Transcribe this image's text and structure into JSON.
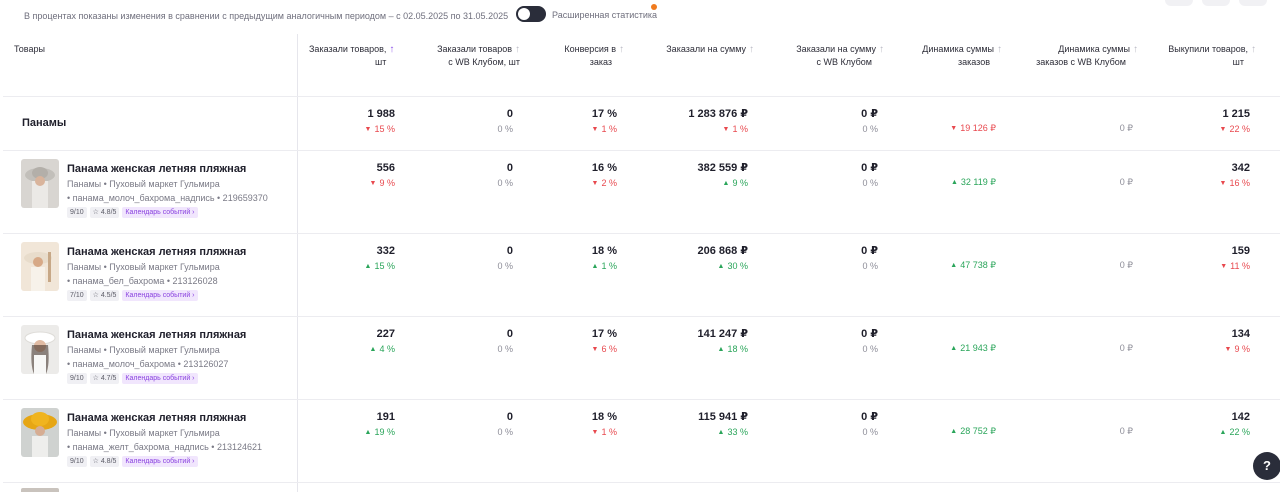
{
  "top": {
    "period_note": "В процентах показаны изменения в сравнении с предыдущим аналогичным периодом – с 02.05.2025 по 31.05.2025",
    "toggle_label": "Расширенная статистика"
  },
  "columns": [
    {
      "line1": "Товары",
      "line2": ""
    },
    {
      "line1": "Заказали товаров,",
      "line2": "шт",
      "arrow": "↑"
    },
    {
      "line1": "Заказали товаров",
      "line2": "с WB Клубом, шт",
      "arrow": "↑"
    },
    {
      "line1": "Конверсия в",
      "line2": "заказ",
      "arrow": "↑"
    },
    {
      "line1": "Заказали на сумму",
      "line2": "",
      "arrow": "↑"
    },
    {
      "line1": "Заказали на сумму",
      "line2": "с WB Клубом",
      "arrow": "↑"
    },
    {
      "line1": "Динамика суммы",
      "line2": "заказов",
      "arrow": "↑"
    },
    {
      "line1": "Динамика суммы",
      "line2": "заказов с WB Клубом",
      "arrow": "↑"
    },
    {
      "line1": "Выкупили товаров,",
      "line2": "шт",
      "arrow": "↑"
    }
  ],
  "group": {
    "name": "Панамы",
    "cells": [
      {
        "value": "1 988",
        "delta": "15 %",
        "dir": "down"
      },
      {
        "value": "0",
        "delta": "0 %",
        "dir": "neutral"
      },
      {
        "value": "17 %",
        "delta": "1 %",
        "dir": "down"
      },
      {
        "value": "1 283 876 ₽",
        "delta": "1 %",
        "dir": "down"
      },
      {
        "value": "0 ₽",
        "delta": "0 %",
        "dir": "neutral"
      },
      {
        "value": "",
        "delta": "19 126 ₽",
        "dir": "down"
      },
      {
        "value": "",
        "delta": "0 ₽",
        "dir": "neutral"
      },
      {
        "value": "1 215",
        "delta": "22 %",
        "dir": "down"
      }
    ]
  },
  "products": [
    {
      "name": "Панама женская летняя пляжная",
      "meta": "Панамы • Пуховый маркет Гульмира",
      "sku": "• панама_молоч_бахрома_надпись • 219659370",
      "score": "9/10",
      "rating": "☆ 4.8/5",
      "calendar": "Календарь событий ›",
      "photo": "photo-grey",
      "cells": [
        {
          "value": "556",
          "delta": "9 %",
          "dir": "down"
        },
        {
          "value": "0",
          "delta": "0 %",
          "dir": "neutral"
        },
        {
          "value": "16 %",
          "delta": "2 %",
          "dir": "down"
        },
        {
          "value": "382 559 ₽",
          "delta": "9 %",
          "dir": "up"
        },
        {
          "value": "0 ₽",
          "delta": "0 %",
          "dir": "neutral"
        },
        {
          "value": "",
          "delta": "32 119 ₽",
          "dir": "up"
        },
        {
          "value": "",
          "delta": "0 ₽",
          "dir": "neutral"
        },
        {
          "value": "342",
          "delta": "16 %",
          "dir": "down"
        }
      ]
    },
    {
      "name": "Панама женская летняя пляжная",
      "meta": "Панамы • Пуховый маркет Гульмира",
      "sku": "• панама_бел_бахрома • 213126028",
      "score": "7/10",
      "rating": "☆ 4.5/5",
      "calendar": "Календарь событий ›",
      "photo": "photo-beige",
      "cells": [
        {
          "value": "332",
          "delta": "15 %",
          "dir": "up"
        },
        {
          "value": "0",
          "delta": "0 %",
          "dir": "neutral"
        },
        {
          "value": "18 %",
          "delta": "1 %",
          "dir": "up"
        },
        {
          "value": "206 868 ₽",
          "delta": "30 %",
          "dir": "up"
        },
        {
          "value": "0 ₽",
          "delta": "0 %",
          "dir": "neutral"
        },
        {
          "value": "",
          "delta": "47 738 ₽",
          "dir": "up"
        },
        {
          "value": "",
          "delta": "0 ₽",
          "dir": "neutral"
        },
        {
          "value": "159",
          "delta": "11 %",
          "dir": "down"
        }
      ]
    },
    {
      "name": "Панама женская летняя пляжная",
      "meta": "Панамы • Пуховый маркет Гульмира",
      "sku": "• панама_молоч_бахрома • 213126027",
      "score": "9/10",
      "rating": "☆ 4.7/5",
      "calendar": "Календарь событий ›",
      "photo": "photo-white",
      "cells": [
        {
          "value": "227",
          "delta": "4 %",
          "dir": "up"
        },
        {
          "value": "0",
          "delta": "0 %",
          "dir": "neutral"
        },
        {
          "value": "17 %",
          "delta": "6 %",
          "dir": "down"
        },
        {
          "value": "141 247 ₽",
          "delta": "18 %",
          "dir": "up"
        },
        {
          "value": "0 ₽",
          "delta": "0 %",
          "dir": "neutral"
        },
        {
          "value": "",
          "delta": "21 943 ₽",
          "dir": "up"
        },
        {
          "value": "",
          "delta": "0 ₽",
          "dir": "neutral"
        },
        {
          "value": "134",
          "delta": "9 %",
          "dir": "down"
        }
      ]
    },
    {
      "name": "Панама женская летняя пляжная",
      "meta": "Панамы • Пуховый маркет Гульмира",
      "sku": "• панама_желт_бахрома_надпись • 213124621",
      "score": "9/10",
      "rating": "☆ 4.8/5",
      "calendar": "Календарь событий ›",
      "photo": "photo-yellow",
      "cells": [
        {
          "value": "191",
          "delta": "19 %",
          "dir": "up"
        },
        {
          "value": "0",
          "delta": "0 %",
          "dir": "neutral"
        },
        {
          "value": "18 %",
          "delta": "1 %",
          "dir": "down"
        },
        {
          "value": "115 941 ₽",
          "delta": "33 %",
          "dir": "up"
        },
        {
          "value": "0 ₽",
          "delta": "0 %",
          "dir": "neutral"
        },
        {
          "value": "",
          "delta": "28 752 ₽",
          "dir": "up"
        },
        {
          "value": "",
          "delta": "0 ₽",
          "dir": "neutral"
        },
        {
          "value": "142",
          "delta": "22 %",
          "dir": "up"
        }
      ]
    }
  ],
  "help": {
    "label": "?"
  },
  "colors": {
    "up": "#2aa55a",
    "down": "#e8494f",
    "accent": "#8d55e8",
    "chip_accent": "#8a42e0"
  }
}
